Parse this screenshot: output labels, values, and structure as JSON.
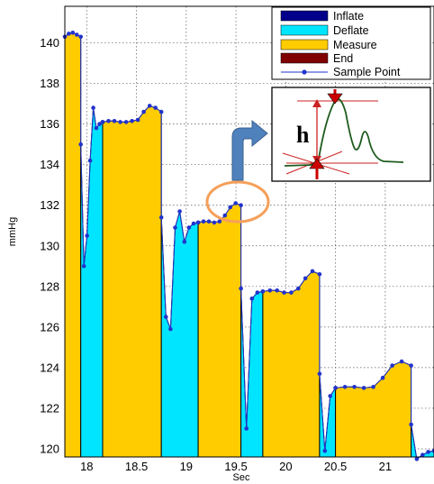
{
  "chart_data": {
    "type": "area",
    "xlabel": "Sec",
    "ylabel": "mmHg",
    "xlim": [
      17.78,
      21.49
    ],
    "ylim": [
      119.6,
      141.8
    ],
    "x_ticks": [
      "18",
      "18.5",
      "19",
      "19.5",
      "20",
      "20.5",
      "21"
    ],
    "y_ticks": [
      "120",
      "122",
      "124",
      "126",
      "128",
      "130",
      "132",
      "134",
      "136",
      "138",
      "140"
    ],
    "grid": true,
    "legend_position": "top-right",
    "legend": [
      {
        "label": "Inflate",
        "color": "#00008b"
      },
      {
        "label": "Deflate",
        "color": "#00e5ff"
      },
      {
        "label": "Measure",
        "color": "#ffcc00"
      },
      {
        "label": "End",
        "color": "#800000"
      },
      {
        "label": "Sample Point",
        "color": "#2233cc"
      }
    ],
    "phases": [
      {
        "phase": "Measure",
        "x": [
          17.78,
          17.94
        ],
        "pressure": [
          140.3,
          140.45,
          140.5,
          140.4,
          140.3
        ]
      },
      {
        "phase": "Deflate",
        "x": [
          17.94,
          18.16
        ],
        "pressure": [
          135.0,
          129.0,
          130.5,
          134.2,
          136.8,
          135.8,
          136.0,
          136.1
        ]
      },
      {
        "phase": "Measure",
        "x": [
          18.16,
          18.75
        ],
        "pressure": [
          136.1,
          136.15,
          136.15,
          136.1,
          136.1,
          136.15,
          136.2,
          136.6,
          136.9,
          136.8,
          136.6
        ]
      },
      {
        "phase": "Deflate",
        "x": [
          18.75,
          19.12
        ],
        "pressure": [
          131.4,
          126.5,
          125.9,
          130.9,
          131.7,
          130.2,
          130.9,
          131.1,
          131.15
        ]
      },
      {
        "phase": "Measure",
        "x": [
          19.12,
          19.55
        ],
        "pressure": [
          131.15,
          131.2,
          131.2,
          131.15,
          131.2,
          131.5,
          131.9,
          132.1,
          132.0
        ]
      },
      {
        "phase": "Deflate",
        "x": [
          19.55,
          19.77
        ],
        "pressure": [
          127.9,
          121.0,
          127.4,
          127.7,
          127.75
        ]
      },
      {
        "phase": "Measure",
        "x": [
          19.77,
          20.34
        ],
        "pressure": [
          127.75,
          127.8,
          127.8,
          127.7,
          127.7,
          127.9,
          128.4,
          128.75,
          128.6
        ]
      },
      {
        "phase": "Deflate",
        "x": [
          20.34,
          20.5
        ],
        "pressure": [
          123.7,
          119.9,
          122.6,
          123.0
        ]
      },
      {
        "phase": "Measure",
        "x": [
          20.5,
          21.26
        ],
        "pressure": [
          123.0,
          123.05,
          123.05,
          123.0,
          123.05,
          123.5,
          124.1,
          124.3,
          124.1
        ]
      },
      {
        "phase": "Deflate",
        "x": [
          21.26,
          21.49
        ],
        "pressure": [
          121.2,
          119.5,
          119.7,
          119.85,
          119.9
        ]
      }
    ],
    "annotations": {
      "inset_symbol": "h"
    }
  }
}
